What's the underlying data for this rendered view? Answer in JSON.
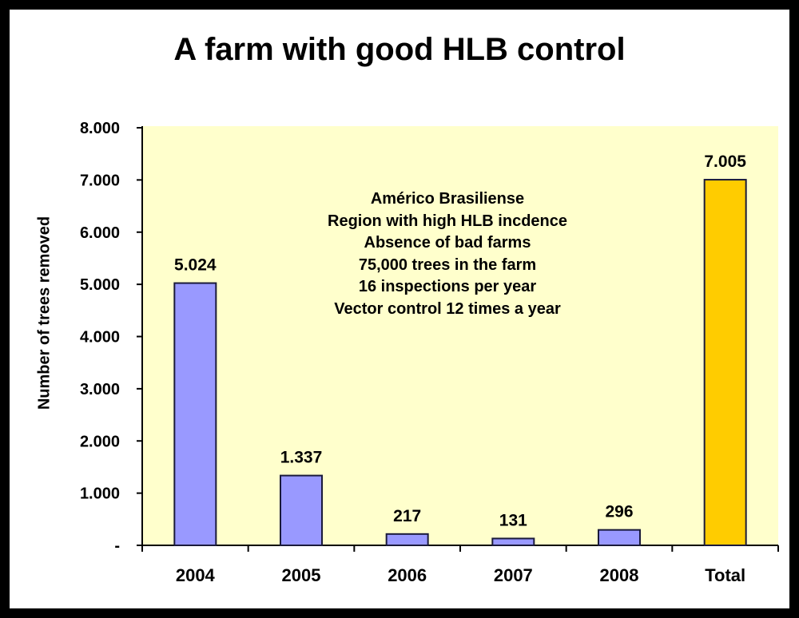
{
  "chart_data": {
    "type": "bar",
    "title": "A farm with good HLB control",
    "xlabel": "",
    "ylabel": "Number of trees removed",
    "categories": [
      "2004",
      "2005",
      "2006",
      "2007",
      "2008",
      "Total"
    ],
    "values": [
      5024,
      1337,
      217,
      131,
      296,
      7005
    ],
    "data_labels": [
      "5.024",
      "1.337",
      "217",
      "131",
      "296",
      "7.005"
    ],
    "ylim": [
      0,
      8000
    ],
    "yticks": [
      0,
      1000,
      2000,
      3000,
      4000,
      5000,
      6000,
      7000,
      8000
    ],
    "ytick_labels": [
      "-",
      "1.000",
      "2.000",
      "3.000",
      "4.000",
      "5.000",
      "6.000",
      "7.000",
      "8.000"
    ],
    "colors": {
      "bar": "#9999ff",
      "total": "#ffcc00",
      "plot_bg": "#ffffcc"
    },
    "annotation": [
      "Américo Brasiliense",
      "Region with high HLB incdence",
      "Absence of bad farms",
      "75,000 trees in the farm",
      "16 inspections per year",
      "Vector control 12 times a year"
    ],
    "grid": false,
    "legend": "none"
  }
}
